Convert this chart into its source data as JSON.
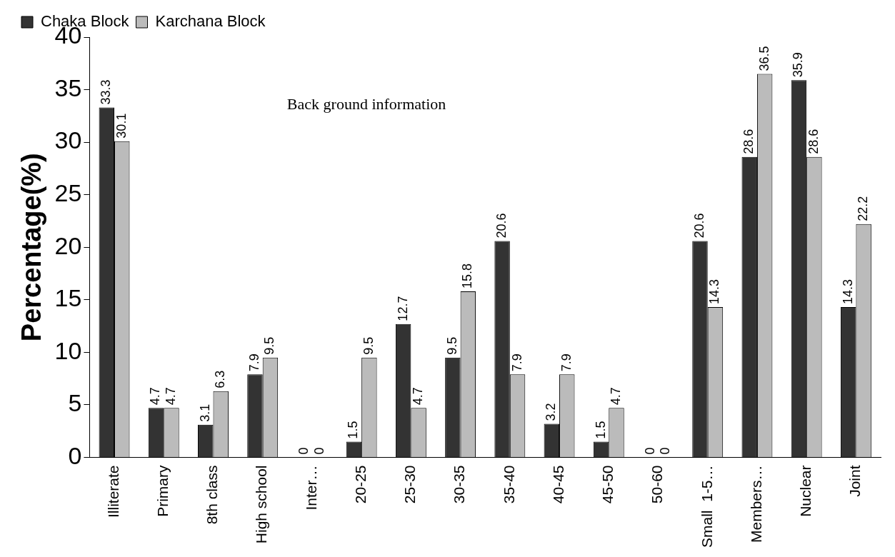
{
  "chart_data": {
    "type": "bar",
    "title": "Back ground information",
    "ylabel": "Percentage(%)",
    "categories": [
      "Illiterate",
      "Primary",
      "8th class",
      "High school",
      "Inter…",
      "20-25",
      "25-30",
      "30-35",
      "35-40",
      "40-45",
      "45-50",
      "50-60",
      "Small  1-5…",
      "Members…",
      "Nuclear",
      "Joint"
    ],
    "series": [
      {
        "name": "Chaka Block",
        "color": "#333333",
        "values": [
          33.3,
          4.7,
          3.1,
          7.9,
          0,
          1.5,
          12.7,
          9.5,
          20.6,
          3.2,
          1.5,
          0,
          20.6,
          28.6,
          35.9,
          14.3
        ]
      },
      {
        "name": "Karchana Block",
        "color": "#bbbbbb",
        "values": [
          30.1,
          4.7,
          6.3,
          9.5,
          0,
          9.5,
          4.7,
          15.8,
          7.9,
          7.9,
          4.7,
          0,
          14.3,
          36.5,
          28.6,
          22.2
        ]
      }
    ],
    "ylim": [
      0,
      40
    ],
    "yticks": [
      0,
      5,
      10,
      15,
      20,
      25,
      30,
      35,
      40
    ],
    "grid": false,
    "legend": "top",
    "data_labels": true
  }
}
